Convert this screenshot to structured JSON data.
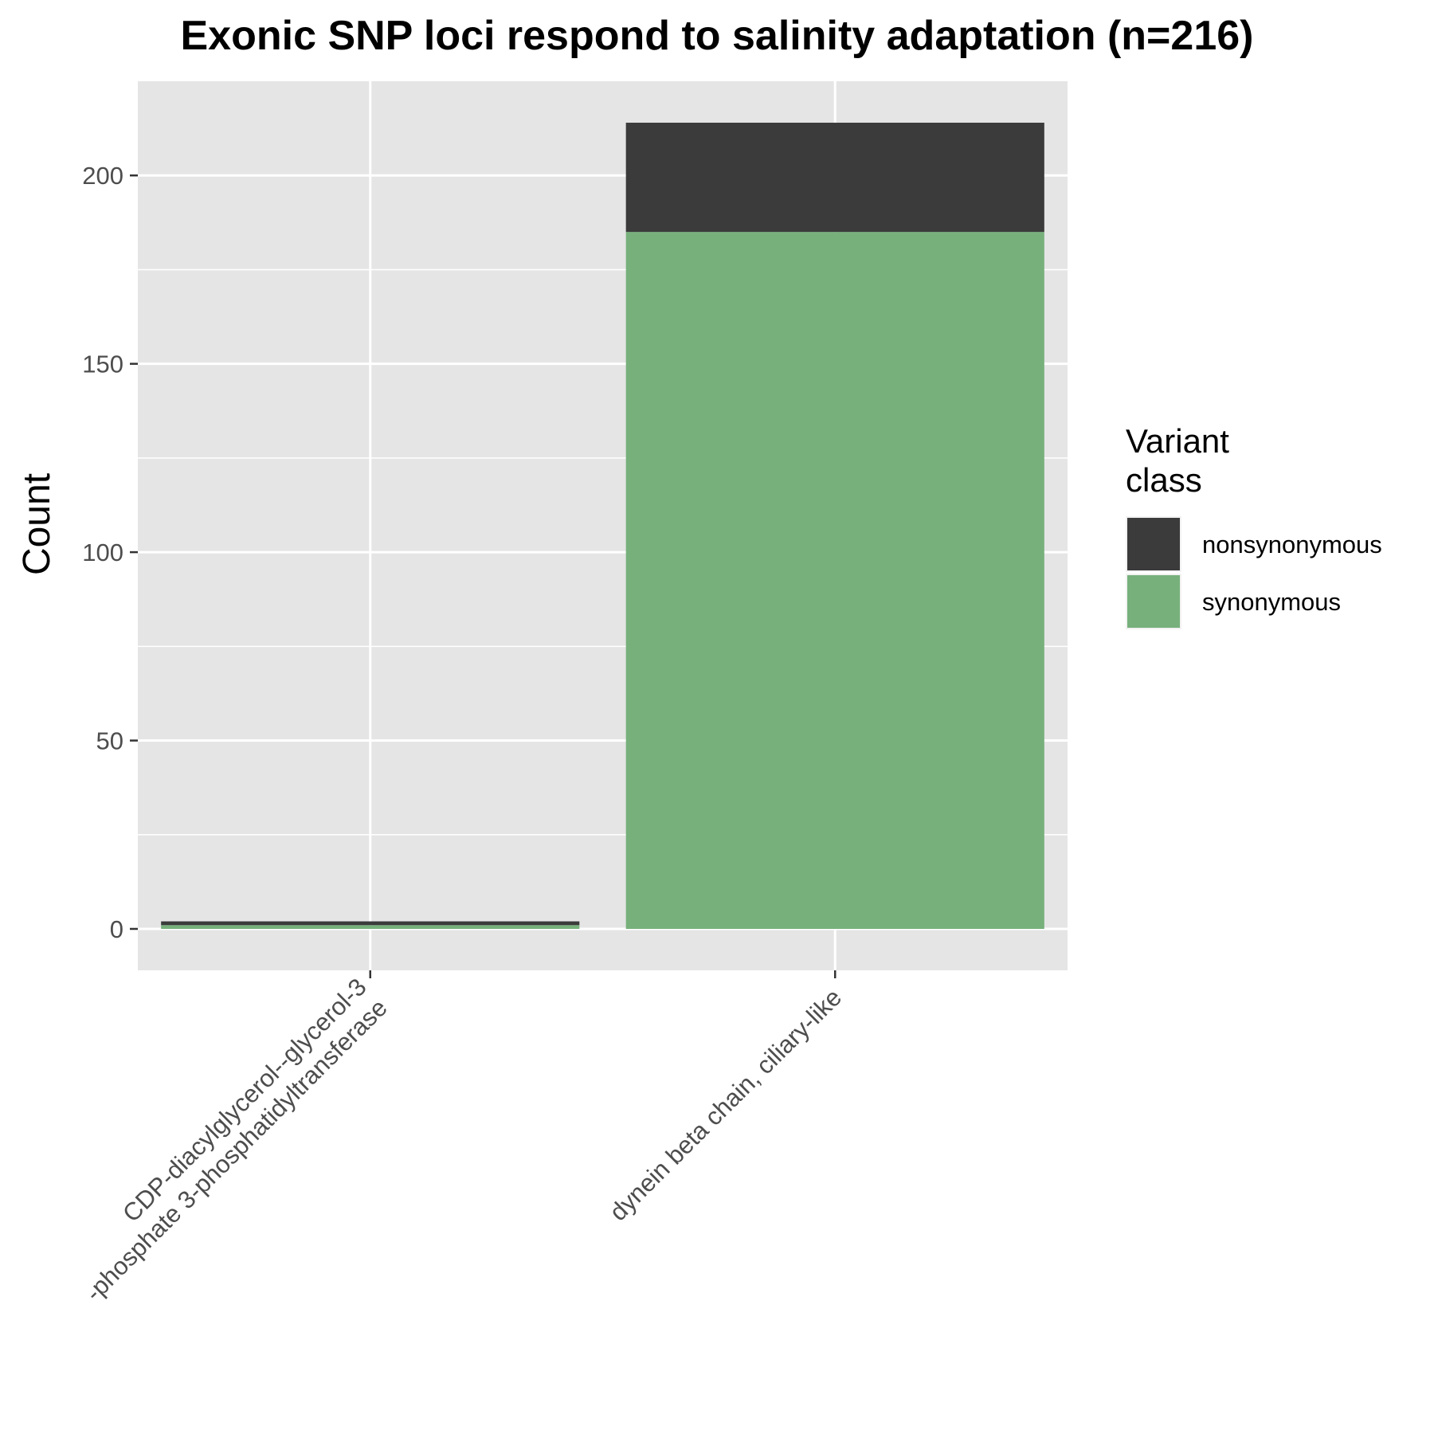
{
  "chart_data": {
    "type": "bar",
    "stacked": true,
    "title": "Exonic SNP loci respond to salinity adaptation (n=216)",
    "xlabel": "",
    "ylabel": "Count",
    "categories": [
      [
        "CDP-diacylglycerol--glycerol-3",
        "-phosphate 3-phosphatidyltransferase"
      ],
      [
        "dynein beta chain, ciliary-like"
      ]
    ],
    "series": [
      {
        "name": "synonymous",
        "color": "#77b07b",
        "values": [
          1,
          185
        ]
      },
      {
        "name": "nonsynonymous",
        "color": "#3b3b3b",
        "values": [
          1,
          29
        ]
      }
    ],
    "ylim": [
      -11,
      225
    ],
    "yticks": [
      0,
      50,
      100,
      150,
      200
    ],
    "grid": true,
    "legend": {
      "title": [
        "Variant",
        "class"
      ],
      "position": "right",
      "entries": [
        "nonsynonymous",
        "synonymous"
      ]
    },
    "panel_color": "#e5e5e5"
  }
}
